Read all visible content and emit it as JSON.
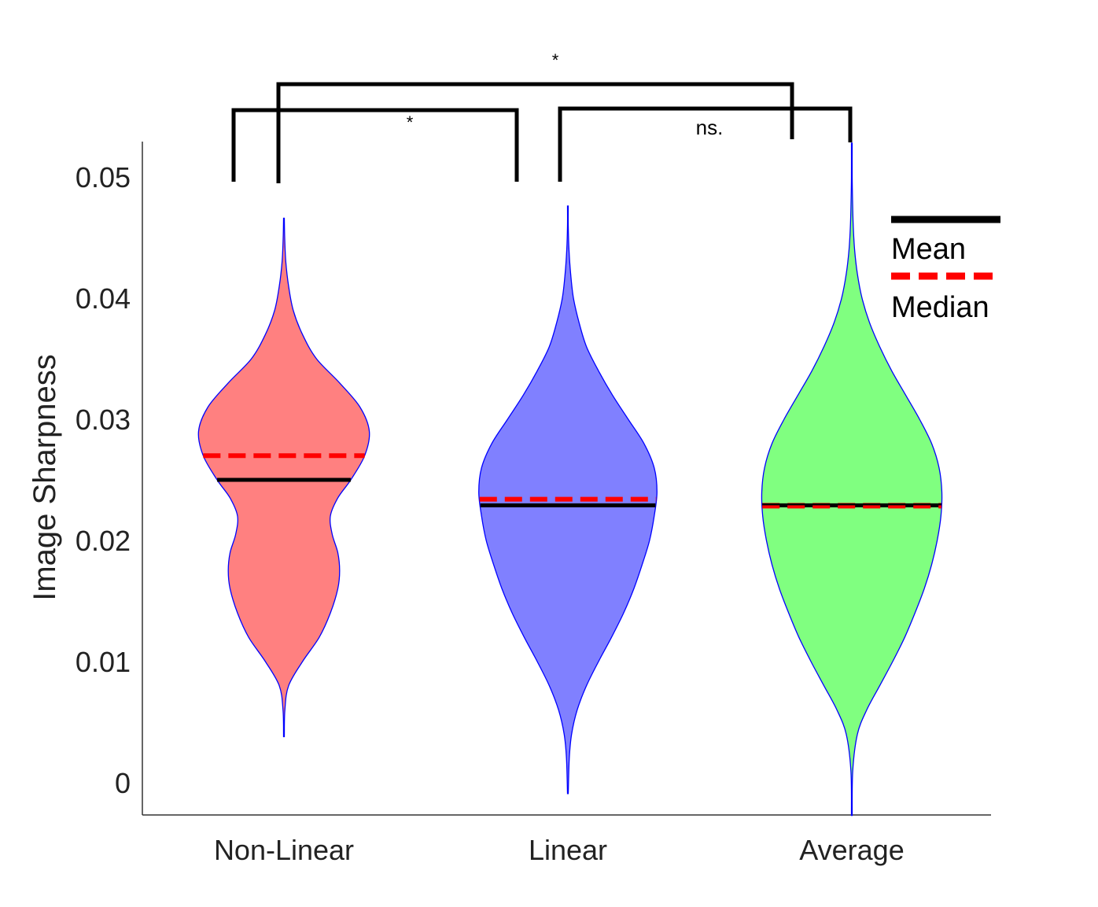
{
  "chart_data": {
    "type": "violin",
    "ylabel": "Image Sharpness",
    "xlabel": "",
    "ylim": [
      -0.0027,
      0.0528
    ],
    "yticks": [
      0,
      0.01,
      0.02,
      0.03,
      0.04,
      0.05
    ],
    "ytick_labels": [
      "0",
      "0.01",
      "0.02",
      "0.03",
      "0.04",
      "0.05"
    ],
    "categories": [
      "Non-Linear",
      "Linear",
      "Average"
    ],
    "series": [
      {
        "name": "Non-Linear",
        "color": "#ff8080",
        "outline": "#0000ff",
        "mean": 0.025,
        "median": 0.027,
        "range": [
          0.0038,
          0.0466
        ],
        "profile": [
          [
            0.0038,
            0.0
          ],
          [
            0.006,
            0.01
          ],
          [
            0.008,
            0.05
          ],
          [
            0.01,
            0.2
          ],
          [
            0.012,
            0.38
          ],
          [
            0.014,
            0.5
          ],
          [
            0.016,
            0.58
          ],
          [
            0.0175,
            0.6
          ],
          [
            0.019,
            0.58
          ],
          [
            0.0205,
            0.52
          ],
          [
            0.022,
            0.5
          ],
          [
            0.0235,
            0.58
          ],
          [
            0.025,
            0.72
          ],
          [
            0.027,
            0.87
          ],
          [
            0.029,
            0.92
          ],
          [
            0.031,
            0.82
          ],
          [
            0.033,
            0.6
          ],
          [
            0.035,
            0.35
          ],
          [
            0.037,
            0.2
          ],
          [
            0.039,
            0.1
          ],
          [
            0.041,
            0.05
          ],
          [
            0.043,
            0.02
          ],
          [
            0.045,
            0.008
          ],
          [
            0.0466,
            0.0
          ]
        ]
      },
      {
        "name": "Linear",
        "color": "#8080ff",
        "outline": "#0000ff",
        "mean": 0.0229,
        "median": 0.0234,
        "range": [
          -0.0009,
          0.0476
        ],
        "profile": [
          [
            -0.0009,
            0.0
          ],
          [
            0.002,
            0.015
          ],
          [
            0.004,
            0.04
          ],
          [
            0.006,
            0.1
          ],
          [
            0.008,
            0.2
          ],
          [
            0.01,
            0.33
          ],
          [
            0.012,
            0.47
          ],
          [
            0.014,
            0.6
          ],
          [
            0.016,
            0.71
          ],
          [
            0.018,
            0.8
          ],
          [
            0.02,
            0.88
          ],
          [
            0.022,
            0.93
          ],
          [
            0.024,
            0.96
          ],
          [
            0.026,
            0.93
          ],
          [
            0.028,
            0.82
          ],
          [
            0.03,
            0.65
          ],
          [
            0.032,
            0.48
          ],
          [
            0.034,
            0.33
          ],
          [
            0.036,
            0.2
          ],
          [
            0.038,
            0.12
          ],
          [
            0.04,
            0.06
          ],
          [
            0.042,
            0.03
          ],
          [
            0.044,
            0.012
          ],
          [
            0.046,
            0.004
          ],
          [
            0.0476,
            0.0
          ]
        ]
      },
      {
        "name": "Average",
        "color": "#80ff80",
        "outline": "#0000ff",
        "mean": 0.0229,
        "median": 0.0229,
        "range": [
          -0.0027,
          0.0528
        ],
        "profile": [
          [
            -0.0027,
            0.0
          ],
          [
            0.001,
            0.01
          ],
          [
            0.004,
            0.06
          ],
          [
            0.006,
            0.16
          ],
          [
            0.008,
            0.3
          ],
          [
            0.01,
            0.44
          ],
          [
            0.012,
            0.57
          ],
          [
            0.014,
            0.68
          ],
          [
            0.016,
            0.78
          ],
          [
            0.018,
            0.86
          ],
          [
            0.02,
            0.92
          ],
          [
            0.022,
            0.96
          ],
          [
            0.024,
            0.97
          ],
          [
            0.026,
            0.94
          ],
          [
            0.028,
            0.86
          ],
          [
            0.03,
            0.73
          ],
          [
            0.032,
            0.58
          ],
          [
            0.034,
            0.43
          ],
          [
            0.036,
            0.3
          ],
          [
            0.038,
            0.19
          ],
          [
            0.04,
            0.11
          ],
          [
            0.042,
            0.06
          ],
          [
            0.044,
            0.03
          ],
          [
            0.046,
            0.015
          ],
          [
            0.048,
            0.008
          ],
          [
            0.05,
            0.004
          ],
          [
            0.0528,
            0.0
          ]
        ]
      }
    ],
    "legend": {
      "position": "top-right",
      "entries": [
        {
          "label": "Mean",
          "color": "#000000",
          "style": "solid"
        },
        {
          "label": "Median",
          "color": "#ff0000",
          "style": "dashed"
        }
      ]
    },
    "significance": [
      {
        "from": "Non-Linear",
        "to": "Linear",
        "label": "*"
      },
      {
        "from": "Linear",
        "to": "Average",
        "label": "ns."
      },
      {
        "from": "Non-Linear",
        "to": "Average",
        "label": "*"
      }
    ],
    "grid": false
  }
}
